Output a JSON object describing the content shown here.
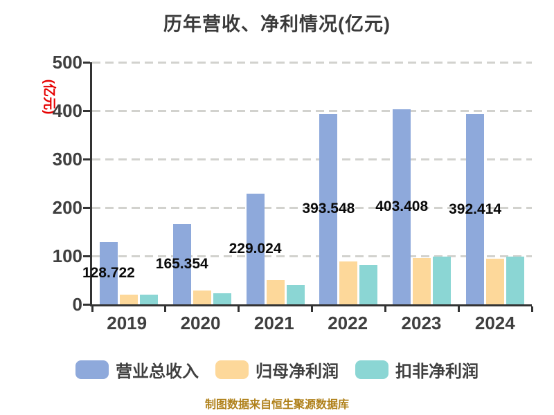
{
  "chart_data": {
    "type": "bar",
    "title": "历年营收、净利情况(亿元)",
    "ylabel": "(亿元)",
    "xlabel": "",
    "ylim": [
      0,
      500
    ],
    "yticks": [
      0,
      100,
      200,
      300,
      400,
      500
    ],
    "grid": "horizontal-dashed",
    "legend_position": "bottom",
    "categories": [
      "2019",
      "2020",
      "2021",
      "2022",
      "2023",
      "2024"
    ],
    "series": [
      {
        "name": "营业总收入",
        "color": "#8ea9db",
        "values": [
          128.722,
          165.354,
          229.024,
          393.548,
          403.408,
          392.414
        ],
        "data_labels": [
          "128.722",
          "165.354",
          "229.024",
          "393.548",
          "403.408",
          "392.414"
        ]
      },
      {
        "name": "归母净利润",
        "color": "#fdd89a",
        "values": [
          20,
          28,
          50,
          88,
          96,
          95
        ]
      },
      {
        "name": "扣非净利润",
        "color": "#8bd6d4",
        "values": [
          20,
          23,
          40,
          82,
          98,
          98
        ]
      }
    ],
    "source": "制图数据来自恒生聚源数据库",
    "style_colors": {
      "axis": "#333333",
      "gridline": "#d2d2ce",
      "tick_text": "#3f3f3f",
      "title_text": "#3a3a3a",
      "data_label_text": "#0a0a0a",
      "y_axis_name_text": "#e60000",
      "source_text": "#b0811b",
      "background": "#ffffff"
    }
  }
}
